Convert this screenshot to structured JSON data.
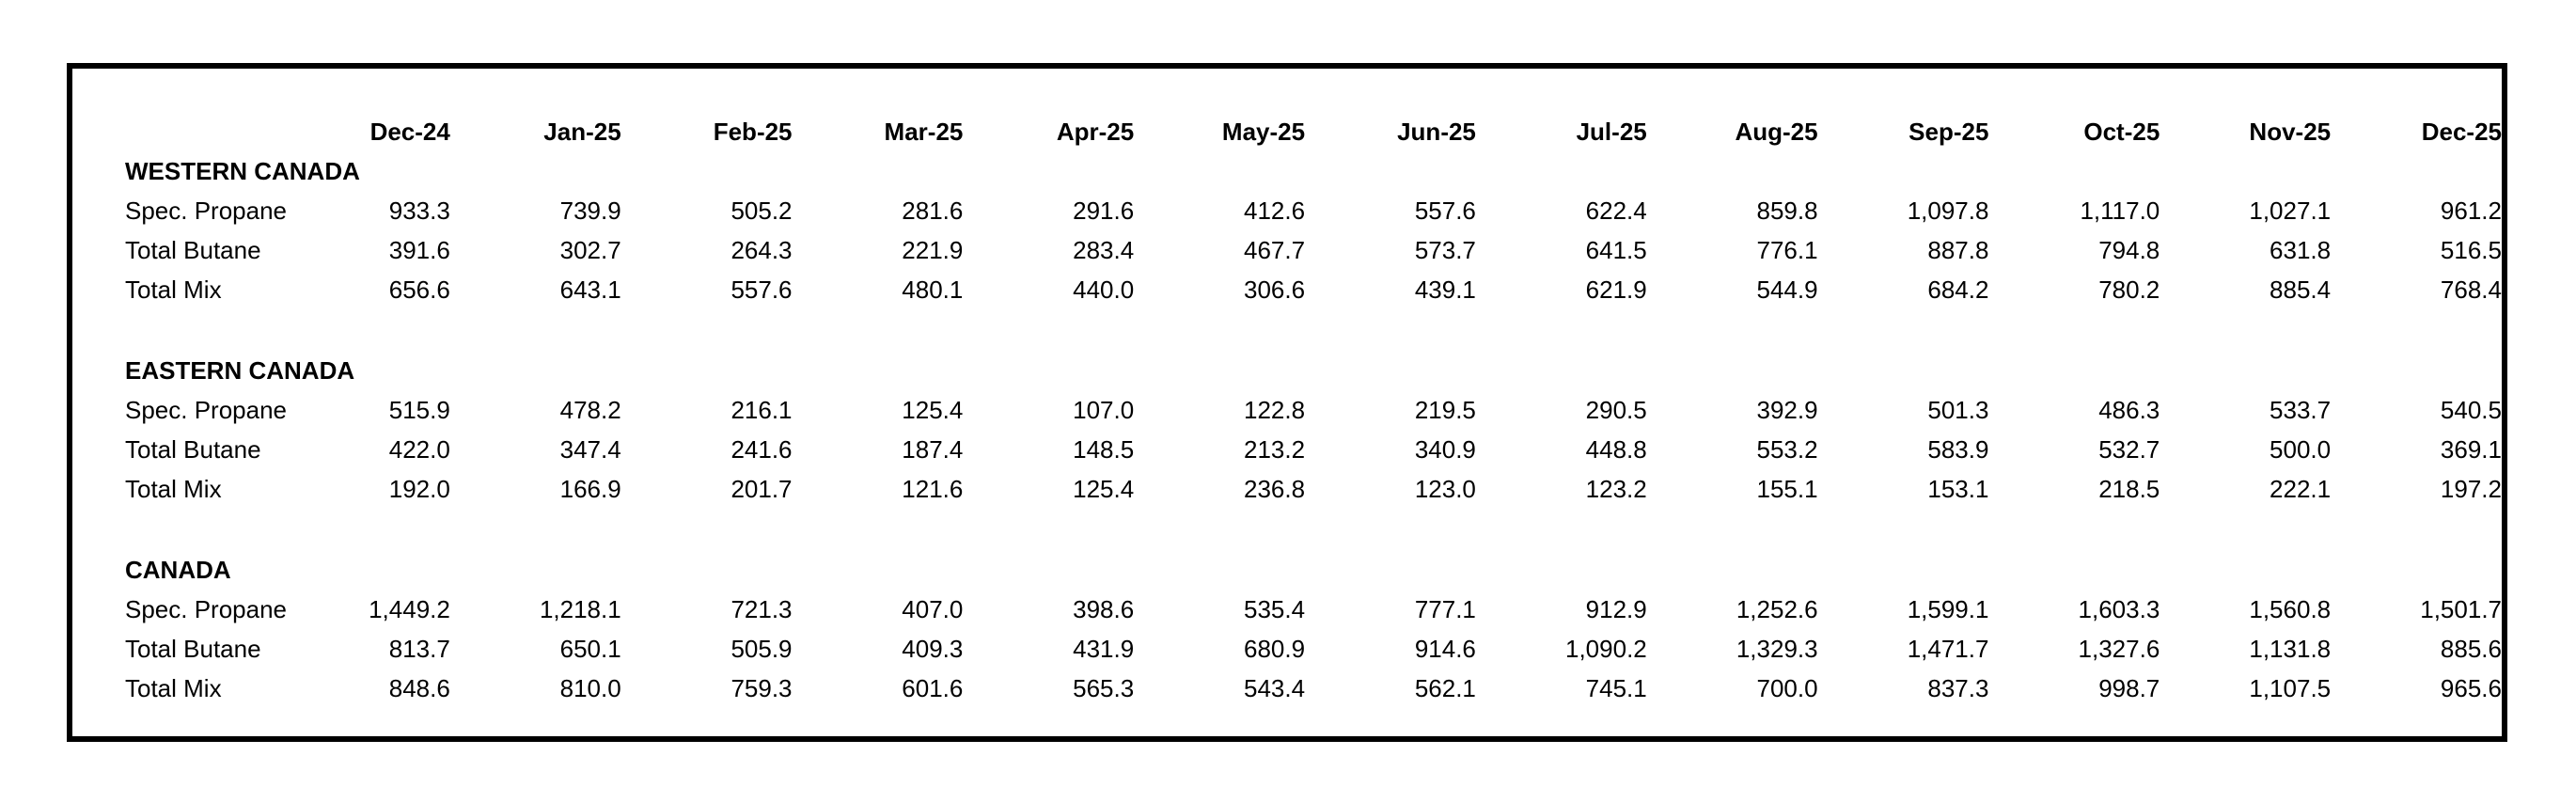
{
  "colors": {
    "background": "#ffffff",
    "frame_border": "#000000",
    "text": "#000000"
  },
  "table": {
    "columns": [
      "Dec-24",
      "Jan-25",
      "Feb-25",
      "Mar-25",
      "Apr-25",
      "May-25",
      "Jun-25",
      "Jul-25",
      "Aug-25",
      "Sep-25",
      "Oct-25",
      "Nov-25",
      "Dec-25"
    ],
    "sections": [
      {
        "title": "WESTERN CANADA",
        "rows": [
          {
            "label": "Spec. Propane",
            "values": [
              "933.3",
              "739.9",
              "505.2",
              "281.6",
              "291.6",
              "412.6",
              "557.6",
              "622.4",
              "859.8",
              "1,097.8",
              "1,117.0",
              "1,027.1",
              "961.2"
            ]
          },
          {
            "label": "Total Butane",
            "values": [
              "391.6",
              "302.7",
              "264.3",
              "221.9",
              "283.4",
              "467.7",
              "573.7",
              "641.5",
              "776.1",
              "887.8",
              "794.8",
              "631.8",
              "516.5"
            ]
          },
          {
            "label": "Total Mix",
            "values": [
              "656.6",
              "643.1",
              "557.6",
              "480.1",
              "440.0",
              "306.6",
              "439.1",
              "621.9",
              "544.9",
              "684.2",
              "780.2",
              "885.4",
              "768.4"
            ]
          }
        ]
      },
      {
        "title": "EASTERN CANADA",
        "rows": [
          {
            "label": "Spec. Propane",
            "values": [
              "515.9",
              "478.2",
              "216.1",
              "125.4",
              "107.0",
              "122.8",
              "219.5",
              "290.5",
              "392.9",
              "501.3",
              "486.3",
              "533.7",
              "540.5"
            ]
          },
          {
            "label": "Total Butane",
            "values": [
              "422.0",
              "347.4",
              "241.6",
              "187.4",
              "148.5",
              "213.2",
              "340.9",
              "448.8",
              "553.2",
              "583.9",
              "532.7",
              "500.0",
              "369.1"
            ]
          },
          {
            "label": "Total Mix",
            "values": [
              "192.0",
              "166.9",
              "201.7",
              "121.6",
              "125.4",
              "236.8",
              "123.0",
              "123.2",
              "155.1",
              "153.1",
              "218.5",
              "222.1",
              "197.2"
            ]
          }
        ]
      },
      {
        "title": "CANADA",
        "rows": [
          {
            "label": "Spec. Propane",
            "values": [
              "1,449.2",
              "1,218.1",
              "721.3",
              "407.0",
              "398.6",
              "535.4",
              "777.1",
              "912.9",
              "1,252.6",
              "1,599.1",
              "1,603.3",
              "1,560.8",
              "1,501.7"
            ]
          },
          {
            "label": "Total Butane",
            "values": [
              "813.7",
              "650.1",
              "505.9",
              "409.3",
              "431.9",
              "680.9",
              "914.6",
              "1,090.2",
              "1,329.3",
              "1,471.7",
              "1,327.6",
              "1,131.8",
              "885.6"
            ]
          },
          {
            "label": "Total Mix",
            "values": [
              "848.6",
              "810.0",
              "759.3",
              "601.6",
              "565.3",
              "543.4",
              "562.1",
              "745.1",
              "700.0",
              "837.3",
              "998.7",
              "1,107.5",
              "965.6"
            ]
          }
        ]
      }
    ]
  },
  "chart_data": {
    "type": "table",
    "categories": [
      "Dec-24",
      "Jan-25",
      "Feb-25",
      "Mar-25",
      "Apr-25",
      "May-25",
      "Jun-25",
      "Jul-25",
      "Aug-25",
      "Sep-25",
      "Oct-25",
      "Nov-25",
      "Dec-25"
    ],
    "series": [
      {
        "name": "WESTERN CANADA - Spec. Propane",
        "values": [
          933.3,
          739.9,
          505.2,
          281.6,
          291.6,
          412.6,
          557.6,
          622.4,
          859.8,
          1097.8,
          1117.0,
          1027.1,
          961.2
        ]
      },
      {
        "name": "WESTERN CANADA - Total Butane",
        "values": [
          391.6,
          302.7,
          264.3,
          221.9,
          283.4,
          467.7,
          573.7,
          641.5,
          776.1,
          887.8,
          794.8,
          631.8,
          516.5
        ]
      },
      {
        "name": "WESTERN CANADA - Total Mix",
        "values": [
          656.6,
          643.1,
          557.6,
          480.1,
          440.0,
          306.6,
          439.1,
          621.9,
          544.9,
          684.2,
          780.2,
          885.4,
          768.4
        ]
      },
      {
        "name": "EASTERN CANADA - Spec. Propane",
        "values": [
          515.9,
          478.2,
          216.1,
          125.4,
          107.0,
          122.8,
          219.5,
          290.5,
          392.9,
          501.3,
          486.3,
          533.7,
          540.5
        ]
      },
      {
        "name": "EASTERN CANADA - Total Butane",
        "values": [
          422.0,
          347.4,
          241.6,
          187.4,
          148.5,
          213.2,
          340.9,
          448.8,
          553.2,
          583.9,
          532.7,
          500.0,
          369.1
        ]
      },
      {
        "name": "EASTERN CANADA - Total Mix",
        "values": [
          192.0,
          166.9,
          201.7,
          121.6,
          125.4,
          236.8,
          123.0,
          123.2,
          155.1,
          153.1,
          218.5,
          222.1,
          197.2
        ]
      },
      {
        "name": "CANADA - Spec. Propane",
        "values": [
          1449.2,
          1218.1,
          721.3,
          407.0,
          398.6,
          535.4,
          777.1,
          912.9,
          1252.6,
          1599.1,
          1603.3,
          1560.8,
          1501.7
        ]
      },
      {
        "name": "CANADA - Total Butane",
        "values": [
          813.7,
          650.1,
          505.9,
          409.3,
          431.9,
          680.9,
          914.6,
          1090.2,
          1329.3,
          1471.7,
          1327.6,
          1131.8,
          885.6
        ]
      },
      {
        "name": "CANADA - Total Mix",
        "values": [
          848.6,
          810.0,
          759.3,
          601.6,
          565.3,
          543.4,
          562.1,
          745.1,
          700.0,
          837.3,
          998.7,
          1107.5,
          965.6
        ]
      }
    ],
    "title": "",
    "xlabel": "",
    "ylabel": "",
    "legend_position": "none",
    "grid": false
  }
}
